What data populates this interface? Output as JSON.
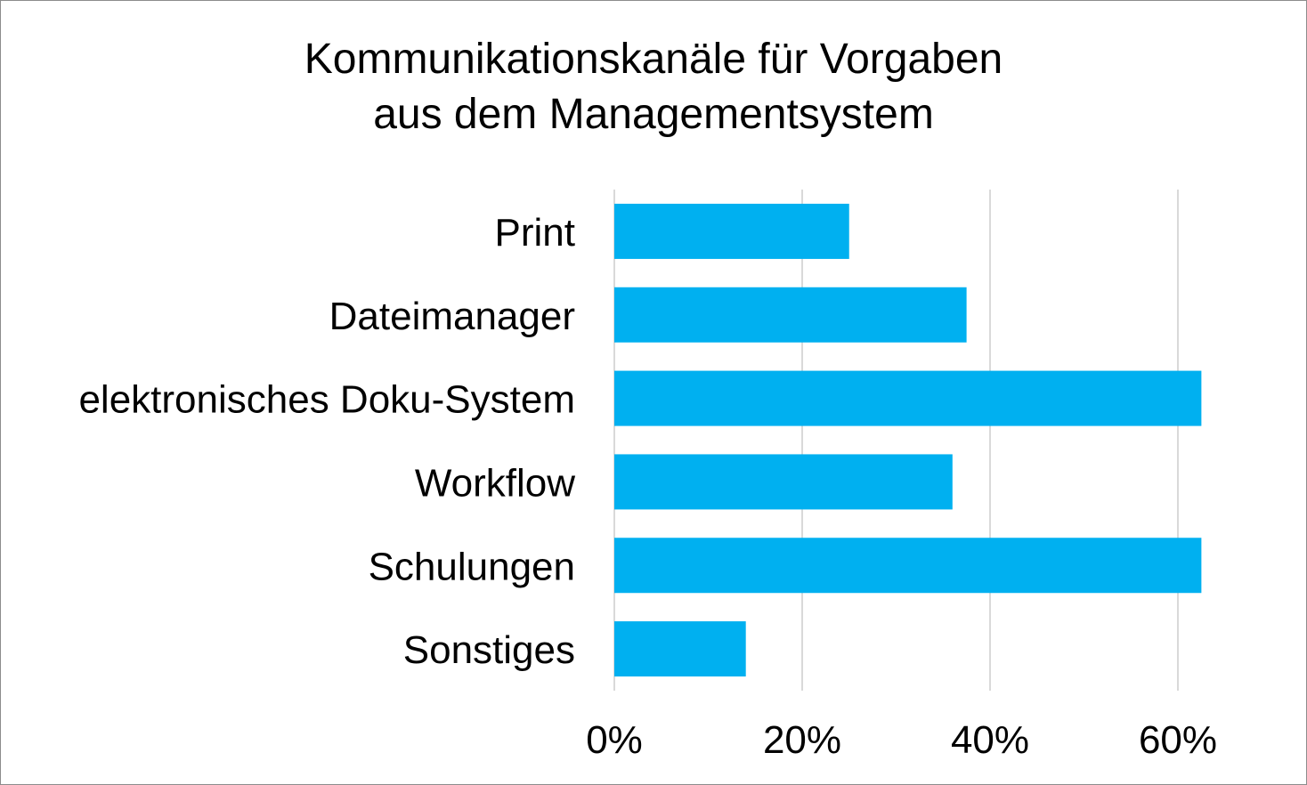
{
  "chart_data": {
    "type": "bar",
    "orientation": "horizontal",
    "title_lines": [
      "Kommunikationskanäle für Vorgaben",
      "aus dem Managementsystem"
    ],
    "categories": [
      "Print",
      "Dateimanager",
      "elektronisches Doku-System",
      "Workflow",
      "Schulungen",
      "Sonstiges"
    ],
    "values": [
      0.25,
      0.375,
      0.625,
      0.36,
      0.625,
      0.14
    ],
    "xlim": [
      0,
      0.6
    ],
    "xticks": [
      0,
      0.2,
      0.4,
      0.6
    ],
    "xtick_labels": [
      "0%",
      "20%",
      "40%",
      "60%"
    ],
    "grid": true,
    "legend": false,
    "bar_color": "#00b0f0",
    "grid_color": "#d9d9d9"
  }
}
